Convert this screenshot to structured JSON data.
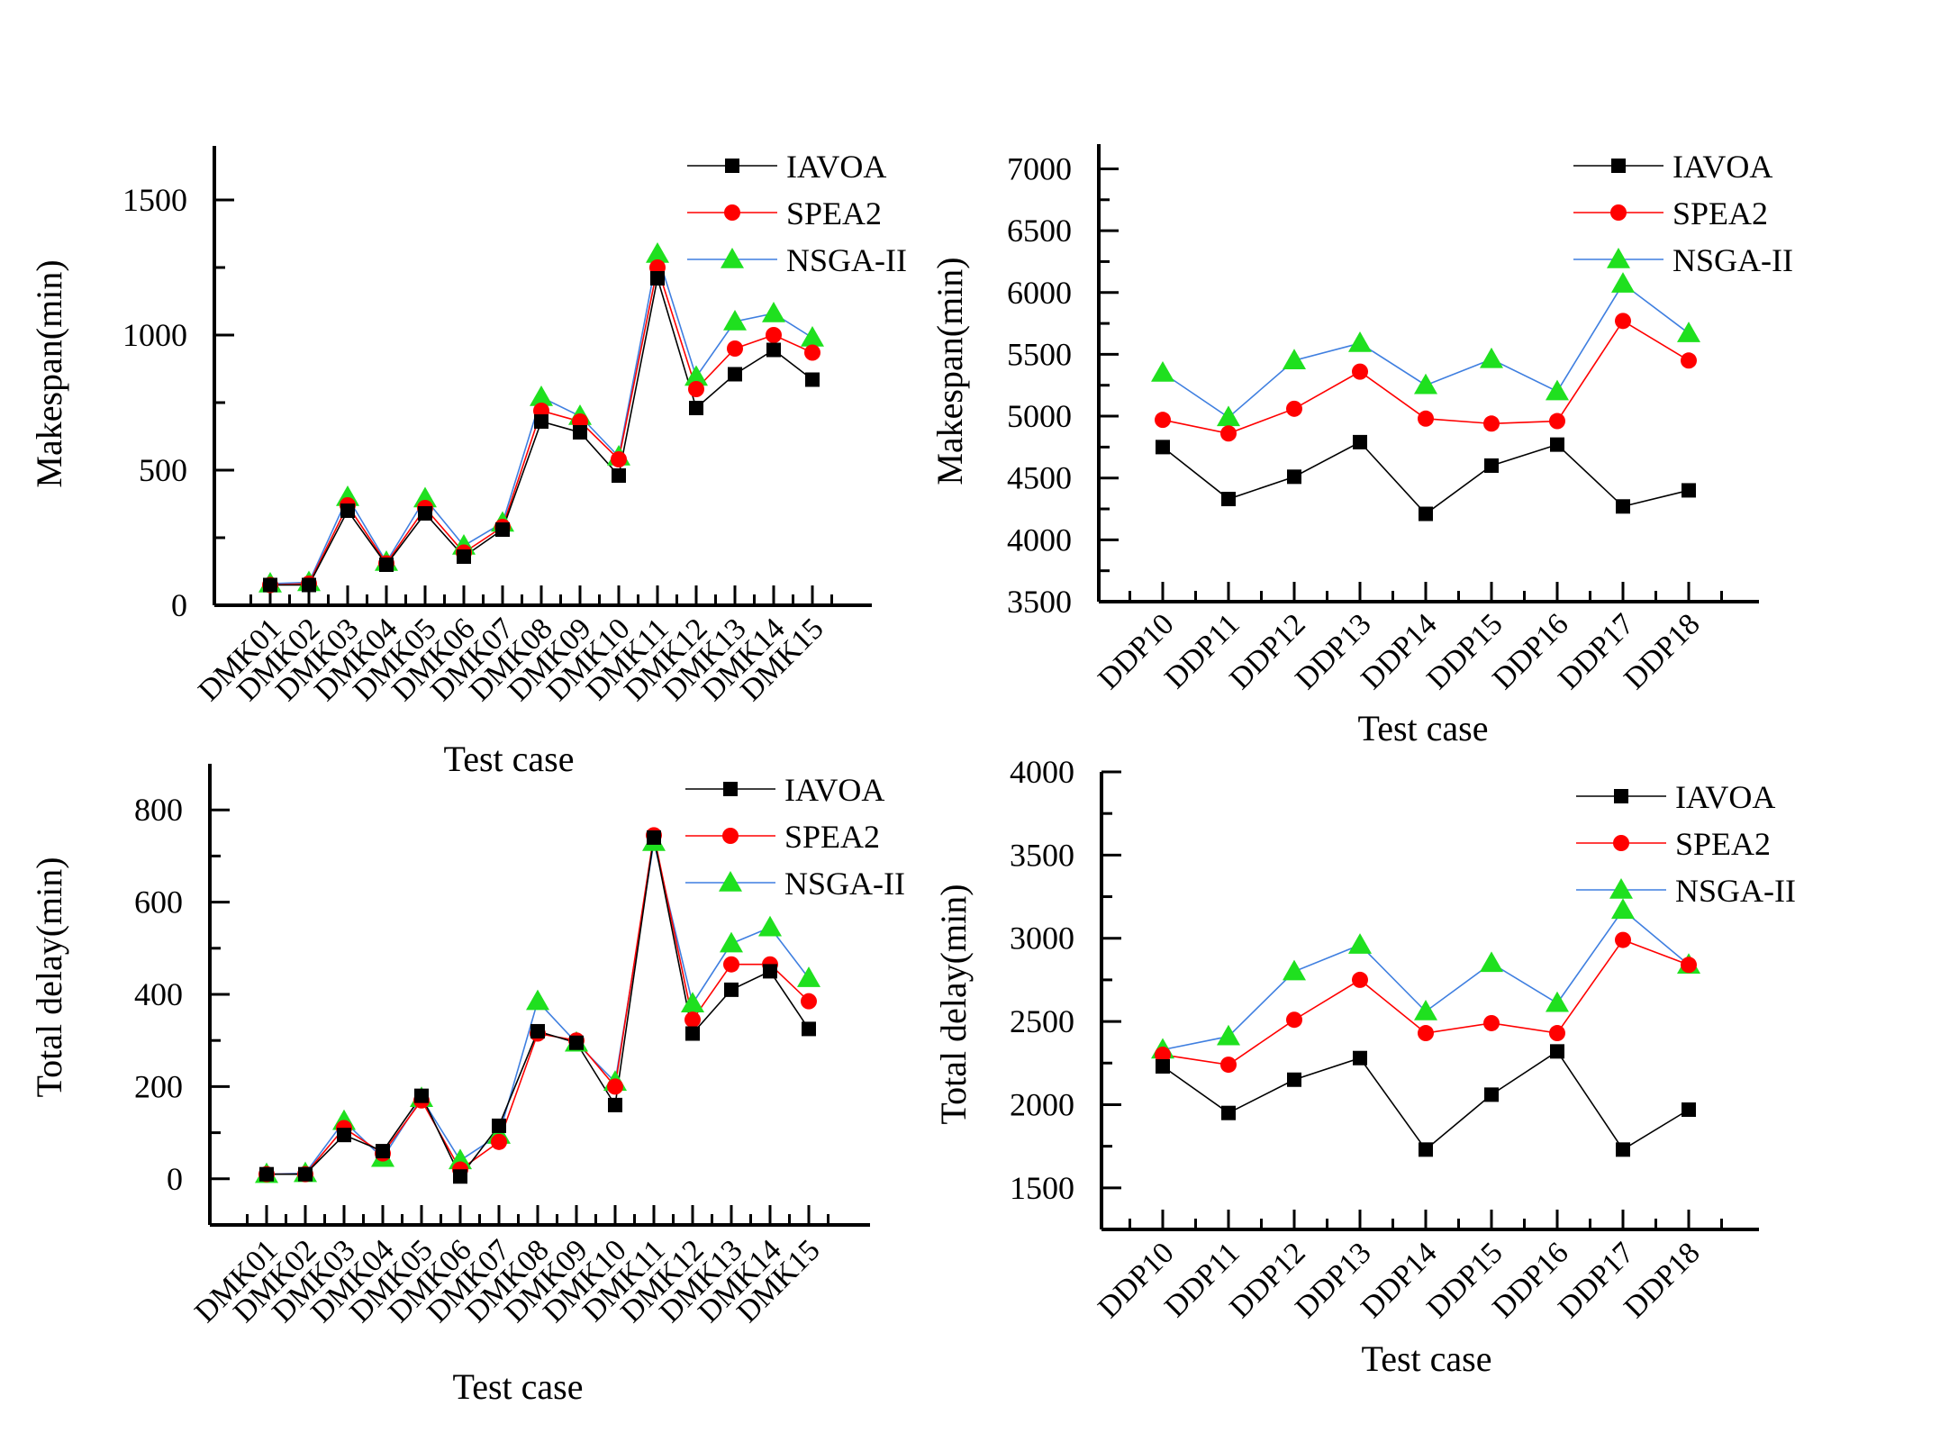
{
  "chart_data": [
    {
      "id": "makespan-dmk",
      "type": "line",
      "title": "",
      "xlabel": "Test case",
      "ylabel": "Makespan(min)",
      "ylim": [
        0,
        1700
      ],
      "yticks": [
        0,
        500,
        1000,
        1500
      ],
      "legend_position": "top-right",
      "categories": [
        "DMK01",
        "DMK02",
        "DMK03",
        "DMK04",
        "DMK05",
        "DMK06",
        "DMK07",
        "DMK08",
        "DMK09",
        "DMK10",
        "DMK11",
        "DMK12",
        "DMK13",
        "DMK14",
        "DMK15"
      ],
      "series": [
        {
          "name": "IAVOA",
          "color": "#000000",
          "marker": "square",
          "values": [
            75,
            75,
            350,
            150,
            340,
            180,
            280,
            680,
            640,
            480,
            1210,
            730,
            855,
            945,
            835
          ]
        },
        {
          "name": "SPEA2",
          "color": "#ff0000",
          "marker": "circle",
          "values": [
            75,
            80,
            370,
            155,
            360,
            195,
            290,
            720,
            680,
            540,
            1250,
            800,
            950,
            1000,
            935
          ]
        },
        {
          "name": "NSGA-II",
          "color": "#3f7fe0",
          "marker": "triangle",
          "values": [
            80,
            85,
            400,
            160,
            395,
            220,
            305,
            770,
            700,
            550,
            1300,
            845,
            1050,
            1080,
            990
          ]
        }
      ]
    },
    {
      "id": "makespan-ddp",
      "type": "line",
      "title": "",
      "xlabel": "Test case",
      "ylabel": "Makespan(min)",
      "ylim": [
        3500,
        7200
      ],
      "yticks": [
        3500,
        4000,
        4500,
        5000,
        5500,
        6000,
        6500,
        7000
      ],
      "legend_position": "top-right",
      "categories": [
        "DDP10",
        "DDP11",
        "DDP12",
        "DDP13",
        "DDP14",
        "DDP15",
        "DDP16",
        "DDP17",
        "DDP18"
      ],
      "series": [
        {
          "name": "IAVOA",
          "color": "#000000",
          "marker": "square",
          "values": [
            4750,
            4330,
            4510,
            4790,
            4210,
            4600,
            4770,
            4270,
            4400
          ]
        },
        {
          "name": "SPEA2",
          "color": "#ff0000",
          "marker": "circle",
          "values": [
            4970,
            4860,
            5060,
            5360,
            4980,
            4940,
            4960,
            5770,
            5450
          ]
        },
        {
          "name": "NSGA-II",
          "color": "#3f7fe0",
          "marker": "triangle",
          "values": [
            5350,
            4990,
            5450,
            5590,
            5250,
            5460,
            5200,
            6070,
            5670
          ]
        }
      ]
    },
    {
      "id": "delay-dmk",
      "type": "line",
      "title": "",
      "xlabel": "Test case",
      "ylabel": "Total delay(min)",
      "ylim": [
        -100,
        900
      ],
      "yticks": [
        0,
        200,
        400,
        600,
        800
      ],
      "legend_position": "top-right",
      "categories": [
        "DMK01",
        "DMK02",
        "DMK03",
        "DMK04",
        "DMK05",
        "DMK06",
        "DMK07",
        "DMK08",
        "DMK09",
        "DMK10",
        "DMK11",
        "DMK12",
        "DMK13",
        "DMK14",
        "DMK15"
      ],
      "series": [
        {
          "name": "IAVOA",
          "color": "#000000",
          "marker": "square",
          "values": [
            10,
            10,
            95,
            60,
            180,
            5,
            115,
            320,
            295,
            160,
            740,
            315,
            410,
            450,
            325
          ]
        },
        {
          "name": "SPEA2",
          "color": "#ff0000",
          "marker": "circle",
          "values": [
            10,
            10,
            110,
            55,
            170,
            20,
            80,
            315,
            300,
            200,
            745,
            345,
            465,
            465,
            385
          ]
        },
        {
          "name": "NSGA-II",
          "color": "#3f7fe0",
          "marker": "triangle",
          "values": [
            10,
            12,
            125,
            45,
            175,
            40,
            95,
            385,
            295,
            210,
            730,
            380,
            510,
            545,
            435
          ]
        }
      ]
    },
    {
      "id": "delay-ddp",
      "type": "line",
      "title": "",
      "xlabel": "Test case",
      "ylabel": "Total delay(min)",
      "ylim": [
        1250,
        4000
      ],
      "yticks": [
        1500,
        2000,
        2500,
        3000,
        3500,
        4000
      ],
      "legend_position": "top-right",
      "categories": [
        "DDP10",
        "DDP11",
        "DDP12",
        "DDP13",
        "DDP14",
        "DDP15",
        "DDP16",
        "DDP17",
        "DDP18"
      ],
      "series": [
        {
          "name": "IAVOA",
          "color": "#000000",
          "marker": "square",
          "values": [
            2230,
            1950,
            2150,
            2280,
            1730,
            2060,
            2320,
            1730,
            1970
          ]
        },
        {
          "name": "SPEA2",
          "color": "#ff0000",
          "marker": "circle",
          "values": [
            2300,
            2240,
            2510,
            2750,
            2430,
            2490,
            2430,
            2990,
            2840
          ]
        },
        {
          "name": "NSGA-II",
          "color": "#3f7fe0",
          "marker": "triangle",
          "values": [
            2330,
            2410,
            2800,
            2960,
            2560,
            2850,
            2610,
            3170,
            2840
          ]
        }
      ]
    }
  ]
}
